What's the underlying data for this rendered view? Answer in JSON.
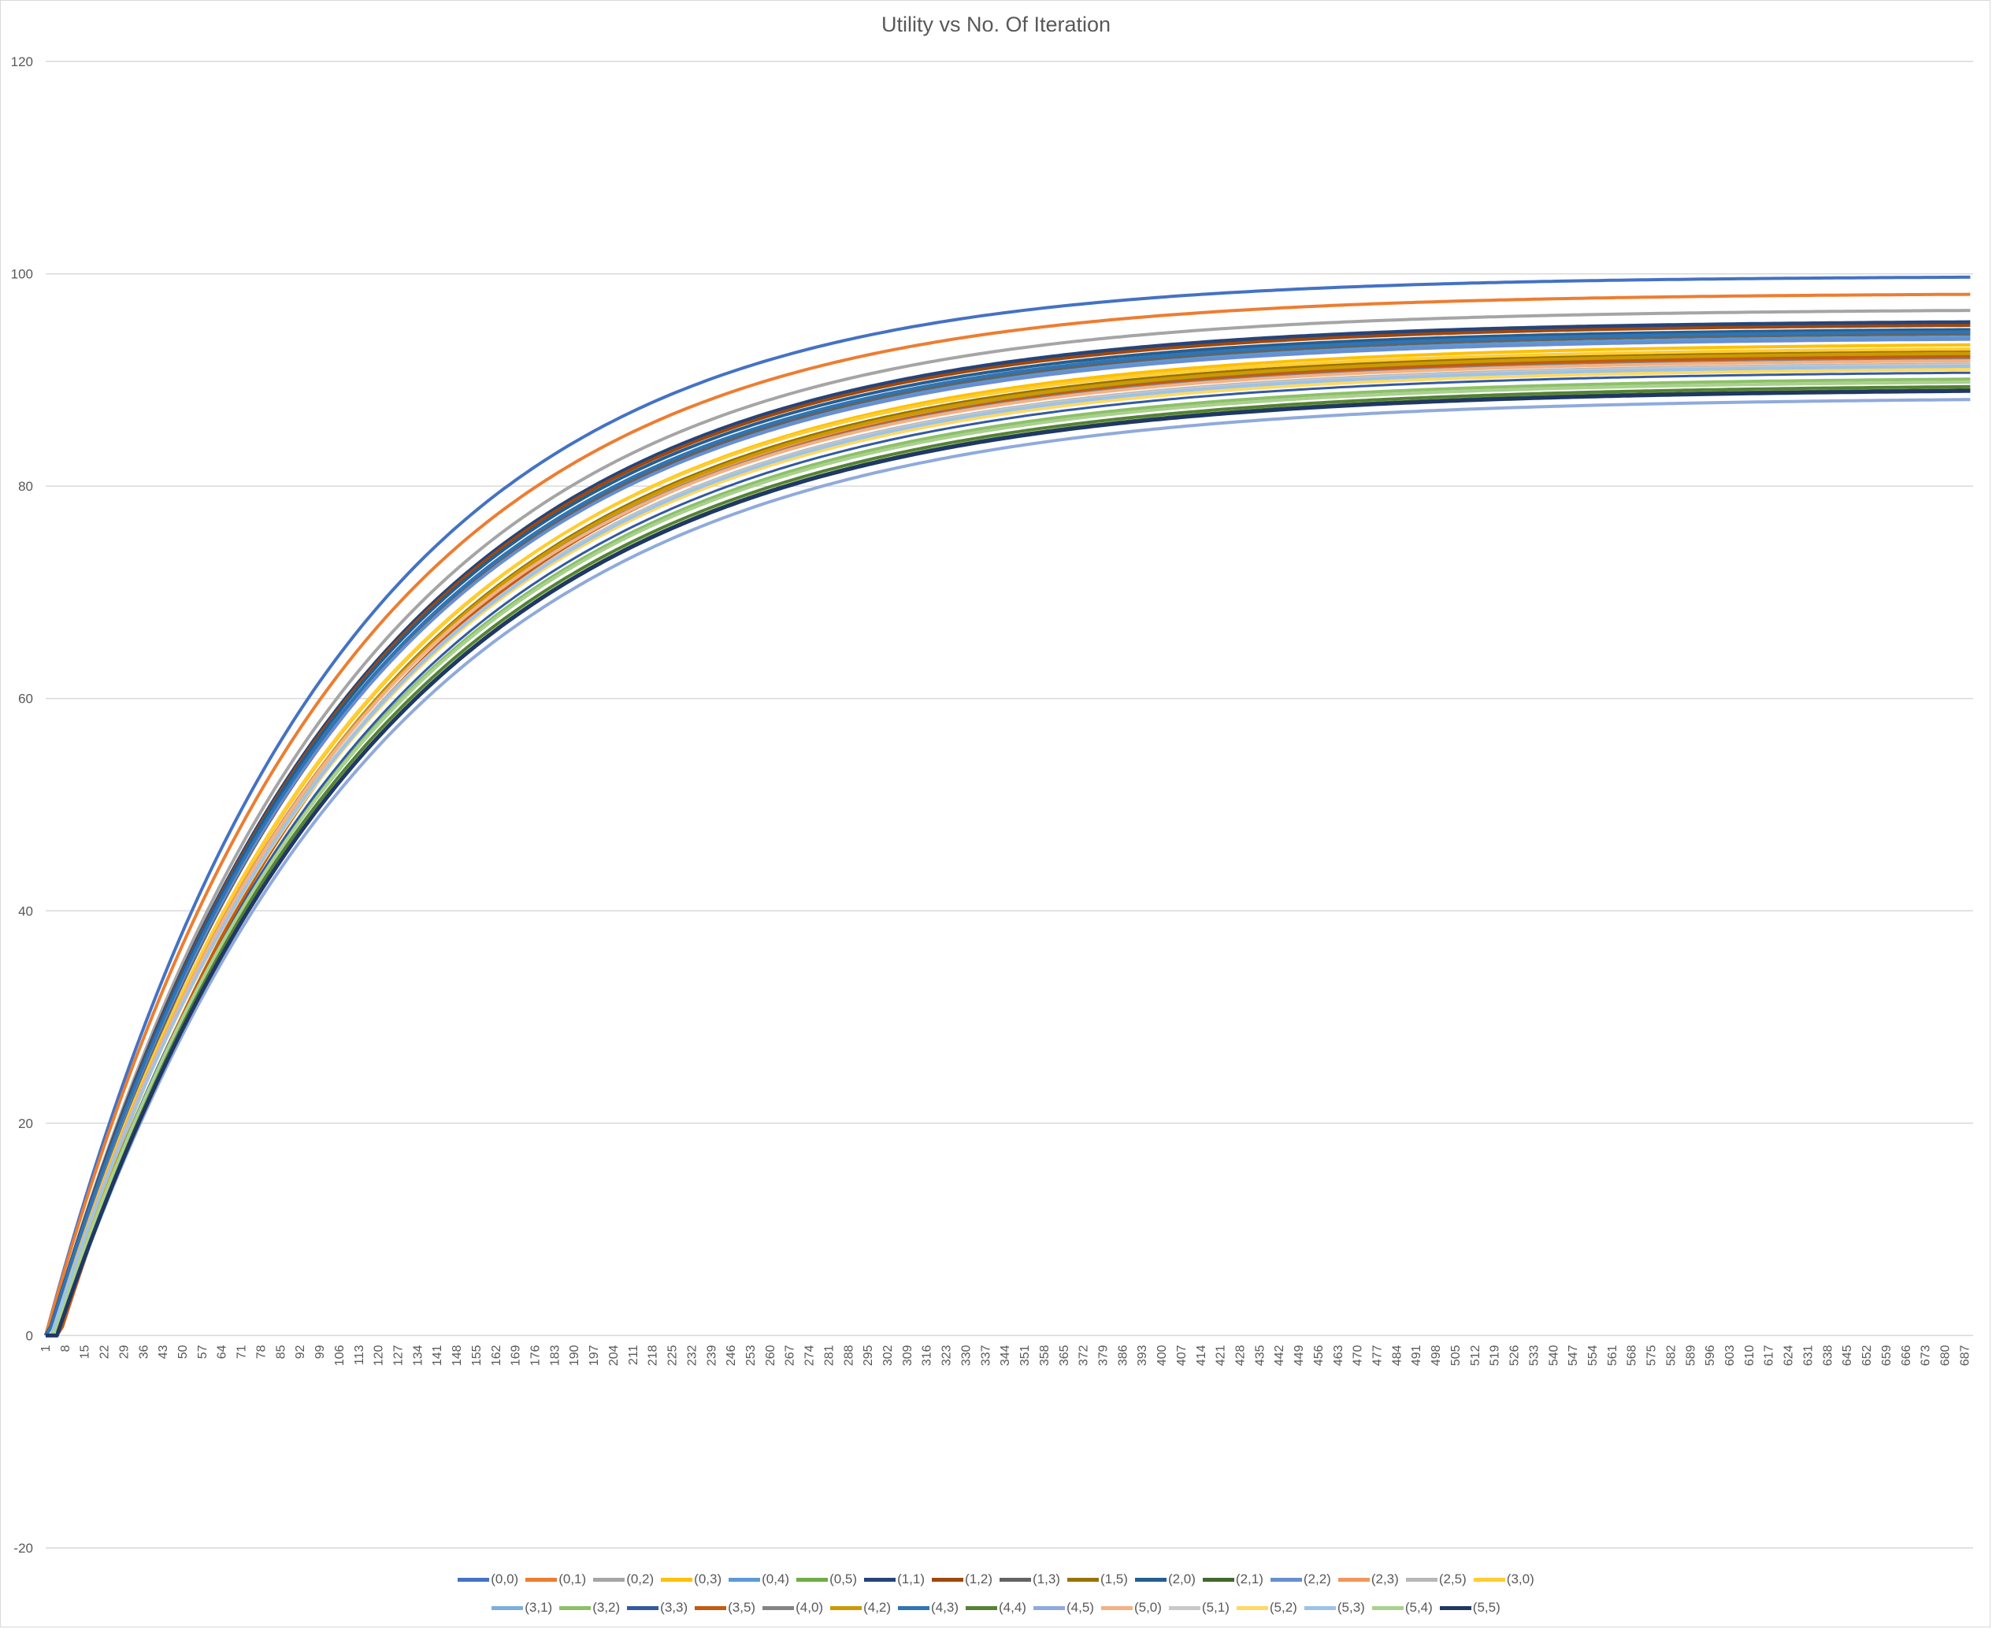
{
  "chart_data": {
    "type": "line",
    "title": "Utility vs No. Of Iteration",
    "xlabel": "",
    "ylabel": "",
    "ylim": [
      -20,
      120
    ],
    "yticks": [
      -20,
      0,
      20,
      40,
      60,
      80,
      100,
      120
    ],
    "xlim": [
      1,
      690
    ],
    "xtick_labels": [
      "1",
      "8",
      "15",
      "22",
      "29",
      "36",
      "43",
      "50",
      "57",
      "64",
      "71",
      "78",
      "85",
      "92",
      "99",
      "106",
      "113",
      "120",
      "127",
      "134",
      "141",
      "148",
      "155",
      "162",
      "169",
      "176",
      "183",
      "190",
      "197",
      "204",
      "211",
      "218",
      "225",
      "232",
      "239",
      "246",
      "253",
      "260",
      "267",
      "274",
      "281",
      "288",
      "295",
      "302",
      "309",
      "316",
      "323",
      "330",
      "337",
      "344",
      "351",
      "358",
      "365",
      "372",
      "379",
      "386",
      "393",
      "400",
      "407",
      "414",
      "421",
      "428",
      "435",
      "442",
      "449",
      "456",
      "463",
      "470",
      "477",
      "484",
      "491",
      "498",
      "505",
      "512",
      "519",
      "526",
      "533",
      "540",
      "547",
      "554",
      "561",
      "568",
      "575",
      "582",
      "589",
      "596",
      "603",
      "610",
      "617",
      "624",
      "631",
      "638",
      "645",
      "652",
      "659",
      "666",
      "673",
      "680",
      "687"
    ],
    "grid": true,
    "legend_position": "bottom",
    "series": [
      {
        "name": "(0,0)",
        "color": "#4472C4",
        "final": 99.8,
        "start": 1,
        "k": 0.0098,
        "width": 4
      },
      {
        "name": "(0,1)",
        "color": "#ED7D31",
        "final": 98.2,
        "start": 1,
        "k": 0.0096,
        "width": 4
      },
      {
        "name": "(0,2)",
        "color": "#A5A5A5",
        "final": 96.7,
        "start": 2,
        "k": 0.0094,
        "width": 4
      },
      {
        "name": "(0,3)",
        "color": "#FFC000",
        "final": 93.5,
        "start": 3,
        "k": 0.009,
        "width": 4
      },
      {
        "name": "(0,4)",
        "color": "#5B9BD5",
        "final": 94.2,
        "start": 2,
        "k": 0.0092,
        "width": 4
      },
      {
        "name": "(0,5)",
        "color": "#70AD47",
        "final": 92.6,
        "start": 3,
        "k": 0.0089,
        "width": 4
      },
      {
        "name": "(1,1)",
        "color": "#264478",
        "final": 95.6,
        "start": 2,
        "k": 0.0093,
        "width": 5
      },
      {
        "name": "(1,2)",
        "color": "#9E480E",
        "final": 95.3,
        "start": 2,
        "k": 0.0093,
        "width": 4
      },
      {
        "name": "(1,3)",
        "color": "#636363",
        "final": 94.5,
        "start": 3,
        "k": 0.0092,
        "width": 4
      },
      {
        "name": "(1,5)",
        "color": "#997300",
        "final": 92.9,
        "start": 4,
        "k": 0.009,
        "width": 4
      },
      {
        "name": "(2,0)",
        "color": "#255E91",
        "final": 94.9,
        "start": 2,
        "k": 0.0093,
        "width": 4
      },
      {
        "name": "(2,1)",
        "color": "#43682B",
        "final": 89.3,
        "start": 5,
        "k": 0.0087,
        "width": 4
      },
      {
        "name": "(2,2)",
        "color": "#698ED0",
        "final": 94.0,
        "start": 2,
        "k": 0.0092,
        "width": 4
      },
      {
        "name": "(2,3)",
        "color": "#F1975A",
        "final": 92.3,
        "start": 3,
        "k": 0.009,
        "width": 4
      },
      {
        "name": "(2,5)",
        "color": "#B7B7B7",
        "final": 91.7,
        "start": 3,
        "k": 0.0089,
        "width": 4
      },
      {
        "name": "(3,0)",
        "color": "#FFCD33",
        "final": 93.1,
        "start": 3,
        "k": 0.0091,
        "width": 4
      },
      {
        "name": "(3,1)",
        "color": "#7CAFDD",
        "final": 91.4,
        "start": 3,
        "k": 0.0089,
        "width": 4
      },
      {
        "name": "(3,2)",
        "color": "#8CC168",
        "final": 90.3,
        "start": 4,
        "k": 0.0088,
        "width": 4
      },
      {
        "name": "(3,3)",
        "color": "#335AA1",
        "final": 90.9,
        "start": 4,
        "k": 0.0088,
        "width": 3
      },
      {
        "name": "(3,5)",
        "color": "#C55A11",
        "final": 92.4,
        "start": 6,
        "k": 0.009,
        "width": 4
      },
      {
        "name": "(4,0)",
        "color": "#848484",
        "final": 92.1,
        "start": 3,
        "k": 0.009,
        "width": 4
      },
      {
        "name": "(4,2)",
        "color": "#CC9A00",
        "final": 92.7,
        "start": 4,
        "k": 0.009,
        "width": 4
      },
      {
        "name": "(4,3)",
        "color": "#2E75B6",
        "final": 94.7,
        "start": 2,
        "k": 0.0092,
        "width": 4
      },
      {
        "name": "(4,4)",
        "color": "#548235",
        "final": 89.6,
        "start": 4,
        "k": 0.0087,
        "width": 4
      },
      {
        "name": "(4,5)",
        "color": "#8FAADC",
        "final": 88.4,
        "start": 5,
        "k": 0.0086,
        "width": 4
      },
      {
        "name": "(5,0)",
        "color": "#F4B183",
        "final": 92.0,
        "start": 3,
        "k": 0.009,
        "width": 4
      },
      {
        "name": "(5,1)",
        "color": "#C9C9C9",
        "final": 91.6,
        "start": 3,
        "k": 0.0089,
        "width": 4
      },
      {
        "name": "(5,2)",
        "color": "#FFD966",
        "final": 91.2,
        "start": 3,
        "k": 0.0089,
        "width": 4
      },
      {
        "name": "(5,3)",
        "color": "#9DC3E6",
        "final": 91.5,
        "start": 3,
        "k": 0.0089,
        "width": 4
      },
      {
        "name": "(5,4)",
        "color": "#A9D18E",
        "final": 90.0,
        "start": 4,
        "k": 0.0088,
        "width": 4
      },
      {
        "name": "(5,5)",
        "color": "#1F3864",
        "final": 89.2,
        "start": 5,
        "k": 0.0087,
        "width": 5
      }
    ]
  }
}
